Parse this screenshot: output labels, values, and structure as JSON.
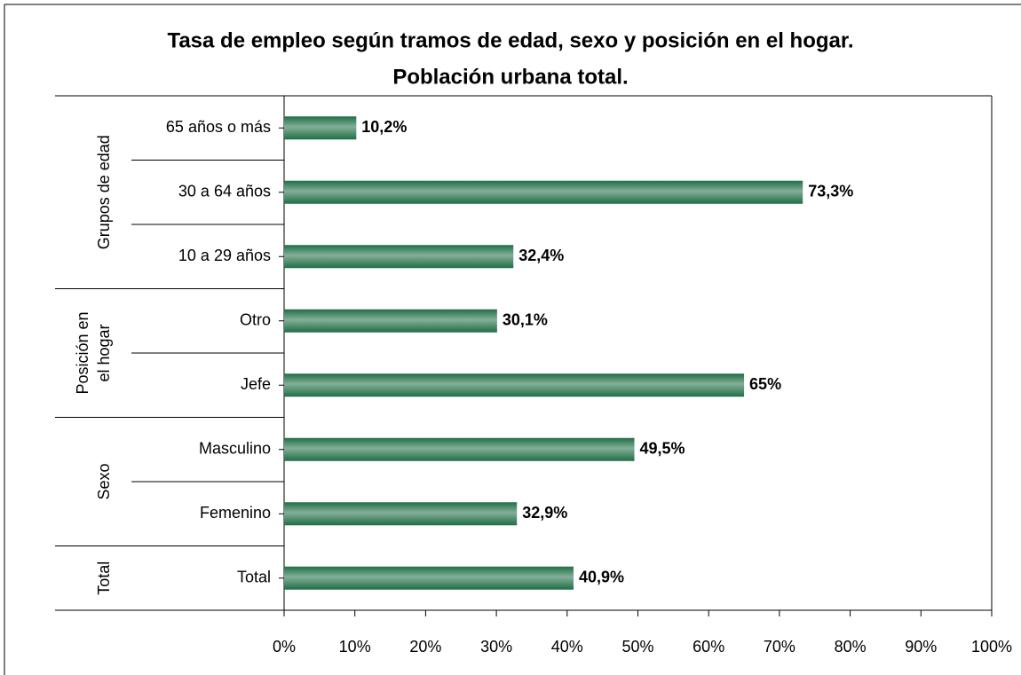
{
  "chart_data": {
    "type": "bar",
    "orientation": "horizontal",
    "title": [
      "Tasa de empleo según tramos de edad, sexo y posición en el hogar.",
      "Población urbana total."
    ],
    "color": "#1f6e45",
    "groups": [
      {
        "name": [
          "Grupos de edad"
        ],
        "categories": [
          "65 años o más",
          "30 a 64 años",
          "10 a 29 años"
        ],
        "values": [
          10.2,
          73.3,
          32.4
        ],
        "value_labels": [
          "10,2%",
          "73,3%",
          "32,4%"
        ]
      },
      {
        "name": [
          "Posición en",
          "el hogar"
        ],
        "categories": [
          "Otro",
          "Jefe"
        ],
        "values": [
          30.1,
          65
        ],
        "value_labels": [
          "30,1%",
          "65%"
        ]
      },
      {
        "name": [
          "Sexo"
        ],
        "categories": [
          "Masculino",
          "Femenino"
        ],
        "values": [
          49.5,
          32.9
        ],
        "value_labels": [
          "49,5%",
          "32,9%"
        ]
      },
      {
        "name": [
          "Total"
        ],
        "categories": [
          "Total"
        ],
        "values": [
          40.9
        ],
        "value_labels": [
          "40,9%"
        ]
      }
    ],
    "xlim": [
      0,
      100
    ],
    "xticks": [
      {
        "value": 0,
        "label": "0%"
      },
      {
        "value": 10,
        "label": "10%"
      },
      {
        "value": 20,
        "label": "20%"
      },
      {
        "value": 30,
        "label": "30%"
      },
      {
        "value": 40,
        "label": "40%"
      },
      {
        "value": 50,
        "label": "50%"
      },
      {
        "value": 60,
        "label": "60%"
      },
      {
        "value": 70,
        "label": "70%"
      },
      {
        "value": 80,
        "label": "80%"
      },
      {
        "value": 90,
        "label": "90%"
      },
      {
        "value": 100,
        "label": "100%"
      }
    ],
    "grid": false
  }
}
